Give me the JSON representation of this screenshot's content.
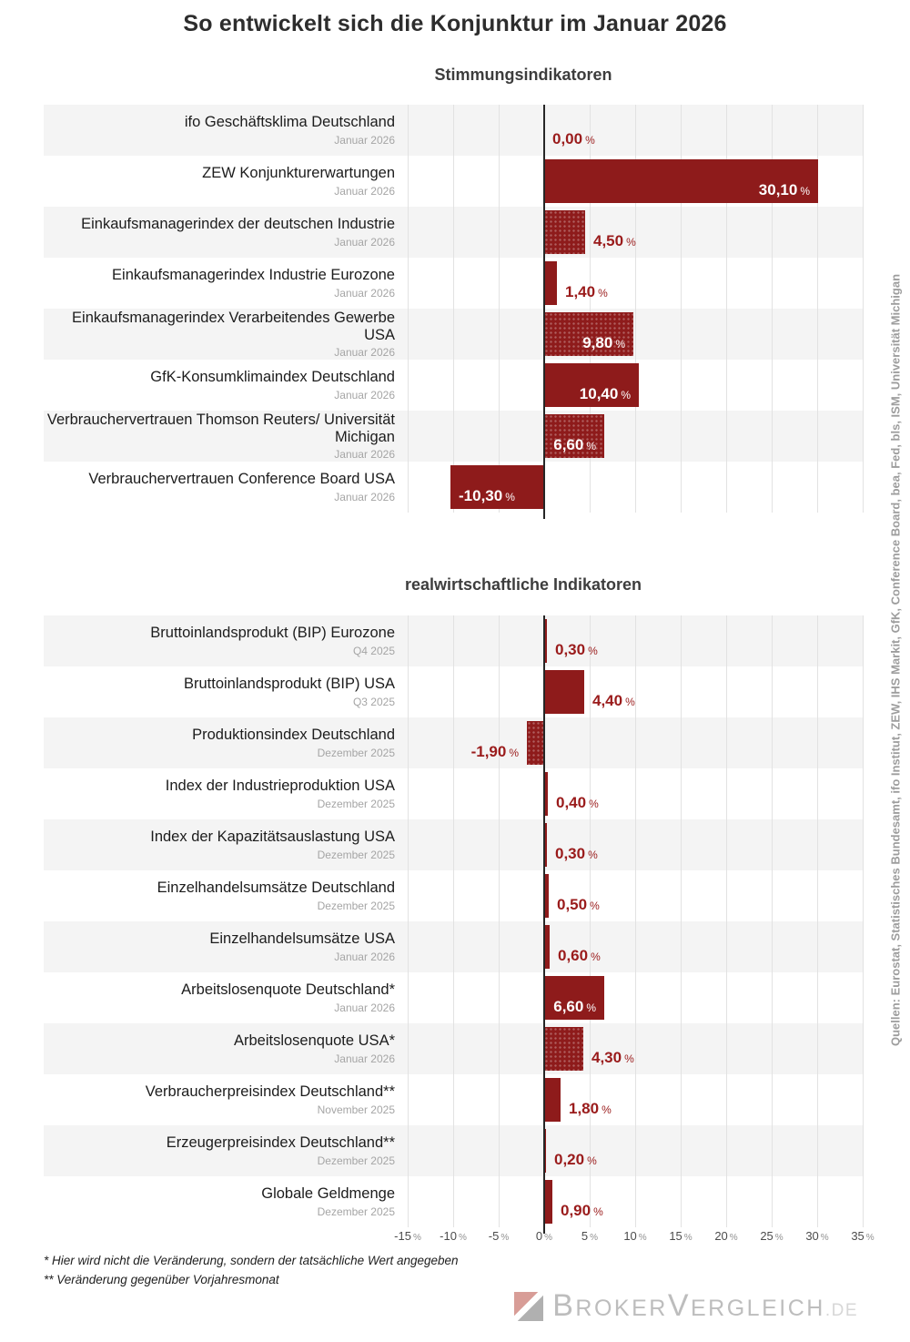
{
  "title": "So entwickelt sich die Konjunktur im Januar 2026",
  "units": {
    "percent": "%"
  },
  "axis": {
    "ticks": [
      "-15",
      "-10",
      "-5",
      "0",
      "5",
      "10",
      "15",
      "20",
      "25",
      "30",
      "35"
    ]
  },
  "sections": [
    {
      "subtitle": "Stimmungsindikatoren",
      "rows": [
        {
          "label": "ifo Geschäftsklima Deutschland",
          "date": "Januar 2026",
          "value": 0.0,
          "value_label": "0,00",
          "placement": "out",
          "pattern": false
        },
        {
          "label": "ZEW Konjunkturerwartungen",
          "date": "Januar 2026",
          "value": 30.1,
          "value_label": "30,10",
          "placement": "in",
          "pattern": false
        },
        {
          "label": "Einkaufsmanagerindex der deutschen Industrie",
          "date": "Januar 2026",
          "value": 4.5,
          "value_label": "4,50",
          "placement": "out",
          "pattern": true
        },
        {
          "label": "Einkaufsmanagerindex Industrie Eurozone",
          "date": "Januar 2026",
          "value": 1.4,
          "value_label": "1,40",
          "placement": "out",
          "pattern": false
        },
        {
          "label": "Einkaufsmanagerindex Verarbeitendes Gewerbe USA",
          "date": "Januar 2026",
          "value": 9.8,
          "value_label": "9,80",
          "placement": "in",
          "pattern": true
        },
        {
          "label": "GfK-Konsumklimaindex Deutschland",
          "date": "Januar 2026",
          "value": 10.4,
          "value_label": "10,40",
          "placement": "in",
          "pattern": false
        },
        {
          "label": "Verbrauchervertrauen Thomson Reuters/ Universität Michigan",
          "date": "Januar 2026",
          "value": 6.6,
          "value_label": "6,60",
          "placement": "in",
          "pattern": true
        },
        {
          "label": "Verbrauchervertrauen Conference Board USA",
          "date": "Januar 2026",
          "value": -10.3,
          "value_label": "-10,30",
          "placement": "in-left",
          "pattern": false
        }
      ]
    },
    {
      "subtitle": "realwirtschaftliche Indikatoren",
      "rows": [
        {
          "label": "Bruttoinlandsprodukt (BIP) Eurozone",
          "date": "Q4 2025",
          "value": 0.3,
          "value_label": "0,30",
          "placement": "out",
          "pattern": false
        },
        {
          "label": "Bruttoinlandsprodukt (BIP) USA",
          "date": "Q3 2025",
          "value": 4.4,
          "value_label": "4,40",
          "placement": "out",
          "pattern": false
        },
        {
          "label": "Produktionsindex Deutschland",
          "date": "Dezember 2025",
          "value": -1.9,
          "value_label": "-1,90",
          "placement": "out-left",
          "pattern": true
        },
        {
          "label": "Index der Industrieproduktion USA",
          "date": "Dezember 2025",
          "value": 0.4,
          "value_label": "0,40",
          "placement": "out",
          "pattern": false
        },
        {
          "label": "Index der Kapazitätsauslastung USA",
          "date": "Dezember 2025",
          "value": 0.3,
          "value_label": "0,30",
          "placement": "out",
          "pattern": false
        },
        {
          "label": "Einzelhandelsumsätze Deutschland",
          "date": "Dezember 2025",
          "value": 0.5,
          "value_label": "0,50",
          "placement": "out",
          "pattern": false
        },
        {
          "label": "Einzelhandelsumsätze USA",
          "date": "Januar 2026",
          "value": 0.6,
          "value_label": "0,60",
          "placement": "out",
          "pattern": false
        },
        {
          "label": "Arbeitslosenquote Deutschland*",
          "date": "Januar 2026",
          "value": 6.6,
          "value_label": "6,60",
          "placement": "in",
          "pattern": false
        },
        {
          "label": "Arbeitslosenquote USA*",
          "date": "Januar 2026",
          "value": 4.3,
          "value_label": "4,30",
          "placement": "out",
          "pattern": true
        },
        {
          "label": "Verbraucherpreisindex Deutschland**",
          "date": "November 2025",
          "value": 1.8,
          "value_label": "1,80",
          "placement": "out",
          "pattern": false
        },
        {
          "label": "Erzeugerpreisindex Deutschland**",
          "date": "Dezember 2025",
          "value": 0.2,
          "value_label": "0,20",
          "placement": "out",
          "pattern": false
        },
        {
          "label": "Globale Geldmenge",
          "date": "Dezember 2025",
          "value": 0.9,
          "value_label": "0,90",
          "placement": "out",
          "pattern": false
        }
      ]
    }
  ],
  "footnotes": [
    "* Hier wird nicht die Veränderung, sondern der tatsächliche Wert angegeben",
    "** Veränderung gegenüber Vorjahresmonat"
  ],
  "source_note": "Quellen: Eurostat, Statistisches Bundesamt, ifo Institut, ZEW, IHS Markit, GfK, Conference Board, bea, Fed, bls, ISM, Universität Michigan",
  "logo": {
    "part1_initial": "B",
    "part1_rest": "ROKER",
    "part2_initial": "V",
    "part2_rest": "ERGLEICH",
    "tld": ".DE"
  },
  "colors": {
    "bar": "#8e1b1b",
    "value_text": "#9a1b1b",
    "stripe": "#f4f4f4",
    "gridline": "#e2e2e2",
    "zero_line": "#262626",
    "source_text": "#9d9d9d"
  },
  "chart_data": [
    {
      "type": "bar",
      "orientation": "horizontal",
      "title": "Stimmungsindikatoren",
      "categories": [
        "ifo Geschäftsklima Deutschland",
        "ZEW Konjunkturerwartungen",
        "Einkaufsmanagerindex der deutschen Industrie",
        "Einkaufsmanagerindex Industrie Eurozone",
        "Einkaufsmanagerindex Verarbeitendes Gewerbe USA",
        "GfK-Konsumklimaindex Deutschland",
        "Verbrauchervertrauen Thomson Reuters/ Universität Michigan",
        "Verbrauchervertrauen Conference Board USA"
      ],
      "category_dates": [
        "Januar 2026",
        "Januar 2026",
        "Januar 2026",
        "Januar 2026",
        "Januar 2026",
        "Januar 2026",
        "Januar 2026",
        "Januar 2026"
      ],
      "values": [
        0.0,
        30.1,
        4.5,
        1.4,
        9.8,
        10.4,
        6.6,
        -10.3
      ],
      "unit": "%",
      "xlim": [
        -15,
        35
      ],
      "grid": true,
      "bar_color": "#8e1b1b"
    },
    {
      "type": "bar",
      "orientation": "horizontal",
      "title": "realwirtschaftliche Indikatoren",
      "categories": [
        "Bruttoinlandsprodukt (BIP) Eurozone",
        "Bruttoinlandsprodukt (BIP) USA",
        "Produktionsindex Deutschland",
        "Index der Industrieproduktion USA",
        "Index der Kapazitätsauslastung USA",
        "Einzelhandelsumsätze Deutschland",
        "Einzelhandelsumsätze USA",
        "Arbeitslosenquote Deutschland*",
        "Arbeitslosenquote USA*",
        "Verbraucherpreisindex Deutschland**",
        "Erzeugerpreisindex Deutschland**",
        "Globale Geldmenge"
      ],
      "category_dates": [
        "Q4 2025",
        "Q3 2025",
        "Dezember 2025",
        "Dezember 2025",
        "Dezember 2025",
        "Dezember 2025",
        "Januar 2026",
        "Januar 2026",
        "Januar 2026",
        "November 2025",
        "Dezember 2025",
        "Dezember 2025"
      ],
      "values": [
        0.3,
        4.4,
        -1.9,
        0.4,
        0.3,
        0.5,
        0.6,
        6.6,
        4.3,
        1.8,
        0.2,
        0.9
      ],
      "unit": "%",
      "xlim": [
        -15,
        35
      ],
      "grid": true,
      "bar_color": "#8e1b1b"
    }
  ]
}
